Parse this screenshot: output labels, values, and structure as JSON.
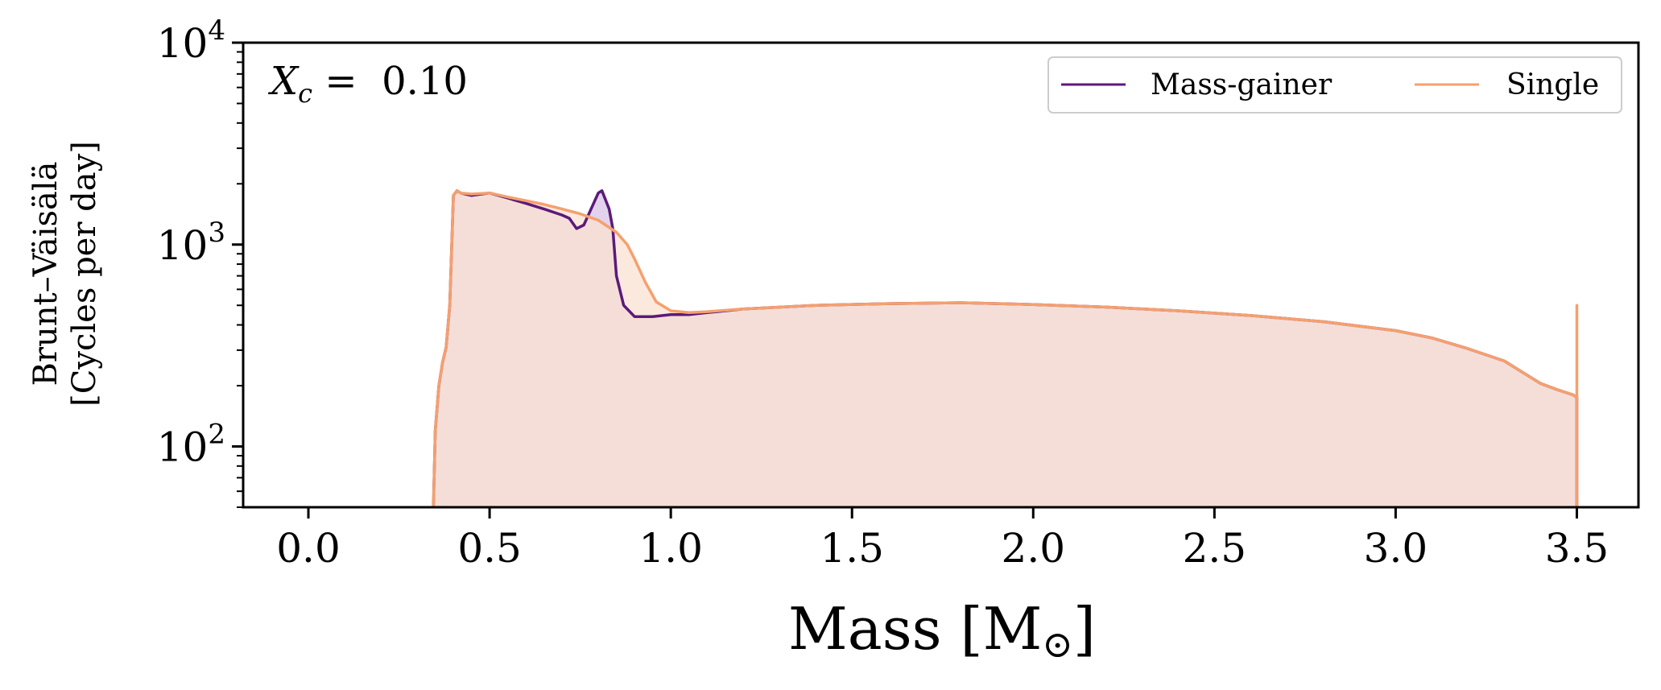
{
  "chart_data": {
    "type": "area",
    "xlabel": "Mass [M",
    "xlabel_symbol": "⊙",
    "xlabel_suffix": "]",
    "ylabel_line1": "Brunt–Väisälä",
    "ylabel_line2": "[Cycles per day]",
    "annotation": {
      "variable": "X",
      "subscript": "c",
      "equals": " =  ",
      "value": "0.10"
    },
    "xlim": [
      -0.18,
      3.67
    ],
    "ylim": [
      50,
      10000
    ],
    "y_scale": "log",
    "x_ticks": [
      0.0,
      0.5,
      1.0,
      1.5,
      2.0,
      2.5,
      3.0,
      3.5
    ],
    "x_tick_labels": [
      "0.0",
      "0.5",
      "1.0",
      "1.5",
      "2.0",
      "2.5",
      "3.0",
      "3.5"
    ],
    "y_ticks": [
      100,
      1000,
      10000
    ],
    "y_tick_labels": [
      {
        "base": "10",
        "exp": "2"
      },
      {
        "base": "10",
        "exp": "3"
      },
      {
        "base": "10",
        "exp": "4"
      }
    ],
    "legend_position": "top-right",
    "series": [
      {
        "name": "Mass-gainer",
        "color": "#5b1a7a",
        "fill": "#d9c3e6",
        "x": [
          0.345,
          0.35,
          0.36,
          0.37,
          0.38,
          0.39,
          0.4,
          0.41,
          0.42,
          0.45,
          0.5,
          0.55,
          0.6,
          0.65,
          0.7,
          0.72,
          0.74,
          0.76,
          0.78,
          0.8,
          0.81,
          0.83,
          0.84,
          0.85,
          0.87,
          0.9,
          0.95,
          1.0,
          1.05,
          1.1,
          1.2,
          1.4,
          1.6,
          1.8,
          2.0,
          2.2,
          2.4,
          2.6,
          2.8,
          3.0,
          3.1,
          3.2,
          3.3,
          3.4,
          3.45,
          3.49,
          3.5,
          3.5
        ],
        "y": [
          50,
          120,
          200,
          260,
          310,
          500,
          1750,
          1850,
          1800,
          1750,
          1800,
          1700,
          1600,
          1500,
          1400,
          1350,
          1200,
          1250,
          1500,
          1800,
          1850,
          1500,
          1200,
          700,
          500,
          440,
          440,
          450,
          450,
          460,
          480,
          500,
          510,
          515,
          505,
          490,
          470,
          445,
          415,
          375,
          345,
          305,
          265,
          205,
          190,
          180,
          175,
          50
        ]
      },
      {
        "name": "Single",
        "color": "#f5a06e",
        "fill": "#fbe2d2",
        "x": [
          0.345,
          0.35,
          0.36,
          0.37,
          0.38,
          0.39,
          0.4,
          0.41,
          0.42,
          0.45,
          0.5,
          0.55,
          0.6,
          0.65,
          0.7,
          0.75,
          0.8,
          0.85,
          0.88,
          0.9,
          0.93,
          0.96,
          1.0,
          1.05,
          1.1,
          1.2,
          1.4,
          1.6,
          1.8,
          2.0,
          2.2,
          2.4,
          2.6,
          2.8,
          3.0,
          3.1,
          3.2,
          3.3,
          3.4,
          3.45,
          3.49,
          3.5,
          3.5,
          3.5,
          3.5
        ],
        "y": [
          50,
          120,
          200,
          260,
          310,
          500,
          1750,
          1850,
          1800,
          1780,
          1800,
          1720,
          1650,
          1580,
          1500,
          1420,
          1320,
          1150,
          1000,
          850,
          650,
          520,
          470,
          460,
          465,
          480,
          500,
          510,
          515,
          505,
          490,
          470,
          445,
          415,
          375,
          345,
          305,
          265,
          205,
          190,
          180,
          175,
          500,
          175,
          50
        ]
      }
    ]
  }
}
